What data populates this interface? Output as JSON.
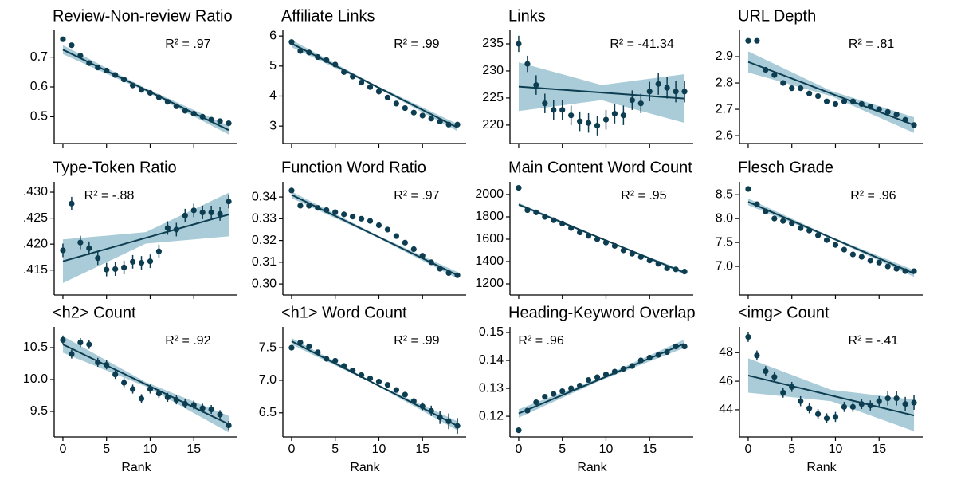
{
  "chart_data": [
    {
      "type": "scatter",
      "title": "Review-Non-review Ratio",
      "annotation": "R² = .97",
      "color": "#0d3d50",
      "band_color": "#a9ccd8",
      "x": [
        0,
        1,
        2,
        3,
        4,
        5,
        6,
        7,
        8,
        9,
        10,
        11,
        12,
        13,
        14,
        15,
        16,
        17,
        18,
        19
      ],
      "values": [
        0.76,
        0.74,
        0.705,
        0.68,
        0.665,
        0.655,
        0.64,
        0.625,
        0.605,
        0.59,
        0.58,
        0.565,
        0.55,
        0.535,
        0.52,
        0.51,
        0.5,
        0.49,
        0.485,
        0.478
      ],
      "errors": [
        0.005,
        0.005,
        0.005,
        0.005,
        0.005,
        0.005,
        0.005,
        0.005,
        0.005,
        0.005,
        0.005,
        0.005,
        0.005,
        0.005,
        0.005,
        0.005,
        0.005,
        0.005,
        0.005,
        0.005
      ],
      "band_x": [
        0,
        9.5,
        19
      ],
      "fit": [
        0.725,
        0.59,
        0.455
      ],
      "band_lower": [
        0.71,
        0.585,
        0.44
      ],
      "band_upper": [
        0.74,
        0.595,
        0.47
      ],
      "xlim": [
        -1,
        20
      ],
      "xticks": [
        0,
        5,
        10,
        15
      ],
      "show_xtick_labels": false,
      "ylim": [
        0.41,
        0.79
      ],
      "yticks": [
        0.5,
        0.6,
        0.7
      ]
    },
    {
      "type": "scatter",
      "title": "Affiliate Links",
      "annotation": "R² = .99",
      "color": "#0d3d50",
      "band_color": "#a9ccd8",
      "x": [
        0,
        1,
        2,
        3,
        4,
        5,
        6,
        7,
        8,
        9,
        10,
        11,
        12,
        13,
        14,
        15,
        16,
        17,
        18,
        19
      ],
      "values": [
        5.8,
        5.5,
        5.45,
        5.3,
        5.2,
        5.05,
        4.8,
        4.65,
        4.45,
        4.3,
        4.15,
        3.95,
        3.75,
        3.6,
        3.45,
        3.35,
        3.25,
        3.15,
        3.05,
        3.05
      ],
      "errors": [
        0.04,
        0.04,
        0.04,
        0.04,
        0.04,
        0.04,
        0.04,
        0.04,
        0.04,
        0.04,
        0.04,
        0.04,
        0.04,
        0.04,
        0.04,
        0.04,
        0.04,
        0.04,
        0.04,
        0.04
      ],
      "band_x": [
        0,
        9.5,
        19
      ],
      "fit": [
        5.75,
        4.35,
        2.95
      ],
      "band_lower": [
        5.63,
        4.32,
        2.83
      ],
      "band_upper": [
        5.87,
        4.38,
        3.07
      ],
      "xlim": [
        -1,
        20
      ],
      "xticks": [
        0,
        5,
        10,
        15
      ],
      "show_xtick_labels": false,
      "ylim": [
        2.42,
        6.19
      ],
      "yticks": [
        3,
        4,
        5,
        6
      ]
    },
    {
      "type": "scatter",
      "title": "Links",
      "annotation": "R² = -41.34",
      "color": "#0d3d50",
      "band_color": "#a9ccd8",
      "x": [
        0,
        1,
        2,
        3,
        4,
        5,
        6,
        7,
        8,
        9,
        10,
        11,
        12,
        13,
        14,
        15,
        16,
        17,
        18,
        19
      ],
      "values": [
        235,
        231.3,
        227.4,
        224,
        222.8,
        222.8,
        221.8,
        220.7,
        220.4,
        219.9,
        221,
        222.1,
        221.8,
        224.6,
        224,
        226.2,
        227.6,
        226.9,
        226.2,
        226.2
      ],
      "errors": [
        1.5,
        1.5,
        1.8,
        1.8,
        1.8,
        1.8,
        1.8,
        1.8,
        1.8,
        1.8,
        1.8,
        1.8,
        1.8,
        1.8,
        1.8,
        1.8,
        2,
        2,
        2,
        2
      ],
      "band_x": [
        0,
        9.5,
        19
      ],
      "fit": [
        227.1,
        226,
        224.9
      ],
      "band_lower": [
        222.6,
        224.6,
        220.4
      ],
      "band_upper": [
        231.6,
        227.4,
        229.4
      ],
      "xlim": [
        -1,
        20
      ],
      "xticks": [
        0,
        5,
        10,
        15
      ],
      "show_xtick_labels": false,
      "ylim": [
        216.6,
        237.5
      ],
      "yticks": [
        220,
        225,
        230,
        235
      ]
    },
    {
      "type": "scatter",
      "title": "URL Depth",
      "annotation": "R² = .81",
      "color": "#0d3d50",
      "band_color": "#a9ccd8",
      "x": [
        0,
        1,
        2,
        3,
        4,
        5,
        6,
        7,
        8,
        9,
        10,
        11,
        12,
        13,
        14,
        15,
        16,
        17,
        18,
        19
      ],
      "values": [
        2.96,
        2.96,
        2.85,
        2.83,
        2.8,
        2.78,
        2.78,
        2.76,
        2.75,
        2.73,
        2.72,
        2.73,
        2.73,
        2.72,
        2.71,
        2.7,
        2.69,
        2.68,
        2.66,
        2.64
      ],
      "errors": [
        0.004,
        0.004,
        0.004,
        0.004,
        0.004,
        0.004,
        0.004,
        0.004,
        0.004,
        0.004,
        0.004,
        0.004,
        0.004,
        0.004,
        0.004,
        0.004,
        0.004,
        0.004,
        0.004,
        0.004
      ],
      "band_x": [
        0,
        9.5,
        19
      ],
      "fit": [
        2.88,
        2.76,
        2.64
      ],
      "band_lower": [
        2.84,
        2.75,
        2.61
      ],
      "band_upper": [
        2.92,
        2.77,
        2.67
      ],
      "xlim": [
        -1,
        20
      ],
      "xticks": [
        0,
        5,
        10,
        15
      ],
      "show_xtick_labels": false,
      "ylim": [
        2.57,
        3.0
      ],
      "yticks": [
        2.6,
        2.7,
        2.8,
        2.9
      ]
    },
    {
      "type": "scatter",
      "title": "Type-Token Ratio",
      "annotation": "R² = -.88",
      "color": "#0d3d50",
      "band_color": "#a9ccd8",
      "x": [
        0,
        1,
        2,
        3,
        4,
        5,
        6,
        7,
        8,
        9,
        10,
        11,
        12,
        13,
        14,
        15,
        16,
        17,
        18,
        19
      ],
      "values": [
        0.4188,
        0.4278,
        0.4203,
        0.4192,
        0.4173,
        0.4151,
        0.4152,
        0.4155,
        0.4166,
        0.4164,
        0.4167,
        0.4186,
        0.4231,
        0.4228,
        0.4255,
        0.4265,
        0.4261,
        0.4261,
        0.4258,
        0.4282
      ],
      "errors": [
        0.0013,
        0.0013,
        0.0013,
        0.0013,
        0.0013,
        0.0013,
        0.0013,
        0.0013,
        0.0013,
        0.0013,
        0.0013,
        0.0013,
        0.0013,
        0.0013,
        0.0013,
        0.0013,
        0.0013,
        0.0013,
        0.0013,
        0.0013
      ],
      "band_x": [
        0,
        9.5,
        19
      ],
      "fit": [
        0.4167,
        0.4212,
        0.4257
      ],
      "band_lower": [
        0.4125,
        0.4201,
        0.4215
      ],
      "band_upper": [
        0.4209,
        0.4223,
        0.4299
      ],
      "xlim": [
        -1,
        20
      ],
      "xticks": [
        0,
        5,
        10,
        15
      ],
      "show_xtick_labels": false,
      "ylim": [
        0.4102,
        0.432
      ],
      "yticks": [
        {
          "value": 0.415,
          "label": ".415"
        },
        {
          "value": 0.42,
          "label": ".420"
        },
        {
          "value": 0.425,
          "label": ".425"
        },
        {
          "value": 0.43,
          "label": ".430"
        }
      ]
    },
    {
      "type": "scatter",
      "title": "Function Word Ratio",
      "annotation": "R² = .97",
      "color": "#0d3d50",
      "band_color": "#a9ccd8",
      "x": [
        0,
        1,
        2,
        3,
        4,
        5,
        6,
        7,
        8,
        9,
        10,
        11,
        12,
        13,
        14,
        15,
        16,
        17,
        18,
        19
      ],
      "values": [
        0.343,
        0.336,
        0.336,
        0.335,
        0.334,
        0.333,
        0.332,
        0.331,
        0.33,
        0.329,
        0.327,
        0.325,
        0.322,
        0.319,
        0.316,
        0.313,
        0.31,
        0.307,
        0.305,
        0.304
      ],
      "errors": [
        0.0004,
        0.0004,
        0.0004,
        0.0004,
        0.0004,
        0.0004,
        0.0004,
        0.0004,
        0.0004,
        0.0004,
        0.0004,
        0.0004,
        0.0004,
        0.0004,
        0.0004,
        0.0004,
        0.0004,
        0.0004,
        0.0004,
        0.0004
      ],
      "band_x": [
        0,
        9.5,
        19
      ],
      "fit": [
        0.341,
        0.3225,
        0.304
      ],
      "band_lower": [
        0.3395,
        0.322,
        0.3025
      ],
      "band_upper": [
        0.3425,
        0.323,
        0.3055
      ],
      "xlim": [
        -1,
        20
      ],
      "xticks": [
        0,
        5,
        10,
        15
      ],
      "show_xtick_labels": false,
      "ylim": [
        0.2949,
        0.347
      ],
      "yticks": [
        {
          "value": 0.3,
          "label": "0.30"
        },
        0.31,
        0.32,
        0.33,
        0.34
      ]
    },
    {
      "type": "scatter",
      "title": "Main Content Word Count",
      "annotation": "R² = .95",
      "color": "#0d3d50",
      "band_color": "#a9ccd8",
      "x": [
        0,
        1,
        2,
        3,
        4,
        5,
        6,
        7,
        8,
        9,
        10,
        11,
        12,
        13,
        14,
        15,
        16,
        17,
        18,
        19
      ],
      "values": [
        2060,
        1860,
        1840,
        1800,
        1770,
        1740,
        1700,
        1660,
        1630,
        1600,
        1570,
        1540,
        1500,
        1470,
        1440,
        1410,
        1380,
        1340,
        1330,
        1310
      ],
      "errors": [
        8,
        8,
        8,
        8,
        8,
        8,
        8,
        8,
        8,
        8,
        8,
        8,
        8,
        8,
        8,
        8,
        8,
        8,
        8,
        8
      ],
      "band_x": [
        0,
        9.5,
        19
      ],
      "fit": [
        1910,
        1605,
        1300
      ],
      "band_lower": [
        1895,
        1600,
        1285
      ],
      "band_upper": [
        1925,
        1610,
        1315
      ],
      "xlim": [
        -1,
        20
      ],
      "xticks": [
        0,
        5,
        10,
        15
      ],
      "show_xtick_labels": false,
      "ylim": [
        1100,
        2114
      ],
      "yticks": [
        1200,
        1400,
        1600,
        1800,
        2000
      ]
    },
    {
      "type": "scatter",
      "title": "Flesch Grade",
      "annotation": "R² = .96",
      "color": "#0d3d50",
      "band_color": "#a9ccd8",
      "x": [
        0,
        1,
        2,
        3,
        4,
        5,
        6,
        7,
        8,
        9,
        10,
        11,
        12,
        13,
        14,
        15,
        16,
        17,
        18,
        19
      ],
      "values": [
        8.62,
        8.3,
        8.15,
        8.0,
        7.95,
        7.9,
        7.8,
        7.75,
        7.65,
        7.55,
        7.45,
        7.35,
        7.25,
        7.2,
        7.12,
        7.08,
        7.0,
        6.95,
        6.9,
        6.9
      ],
      "errors": [
        0.02,
        0.02,
        0.02,
        0.02,
        0.02,
        0.02,
        0.02,
        0.02,
        0.02,
        0.02,
        0.02,
        0.02,
        0.02,
        0.02,
        0.02,
        0.02,
        0.02,
        0.02,
        0.02,
        0.02
      ],
      "band_x": [
        0,
        9.5,
        19
      ],
      "fit": [
        8.35,
        7.6,
        6.85
      ],
      "band_lower": [
        8.28,
        7.58,
        6.78
      ],
      "band_upper": [
        8.42,
        7.62,
        6.92
      ],
      "xlim": [
        -1,
        20
      ],
      "xticks": [
        0,
        5,
        10,
        15
      ],
      "show_xtick_labels": false,
      "ylim": [
        6.4,
        8.77
      ],
      "yticks": [
        {
          "value": 7,
          "label": "7.0"
        },
        7.5,
        {
          "value": 8,
          "label": "8.0"
        },
        8.5
      ]
    },
    {
      "type": "scatter",
      "title": "<h2> Count",
      "annotation": "R² = .92",
      "color": "#0d3d50",
      "band_color": "#a9ccd8",
      "x": [
        0,
        1,
        2,
        3,
        4,
        5,
        6,
        7,
        8,
        9,
        10,
        11,
        12,
        13,
        14,
        15,
        16,
        17,
        18,
        19
      ],
      "values": [
        10.62,
        10.4,
        10.58,
        10.55,
        10.27,
        10.23,
        10.08,
        9.95,
        9.85,
        9.7,
        9.85,
        9.78,
        9.72,
        9.68,
        9.62,
        9.6,
        9.55,
        9.53,
        9.45,
        9.28
      ],
      "errors": [
        0.07,
        0.07,
        0.07,
        0.07,
        0.07,
        0.07,
        0.07,
        0.07,
        0.07,
        0.07,
        0.07,
        0.07,
        0.07,
        0.07,
        0.07,
        0.07,
        0.07,
        0.07,
        0.07,
        0.07
      ],
      "band_x": [
        0,
        9.5,
        19
      ],
      "fit": [
        10.55,
        9.925,
        9.3
      ],
      "band_lower": [
        10.42,
        9.89,
        9.17
      ],
      "band_upper": [
        10.68,
        9.96,
        9.43
      ],
      "xlim": [
        -1,
        20
      ],
      "xticks": [
        0,
        5,
        10,
        15
      ],
      "show_xtick_labels": true,
      "xlabel": "Rank",
      "ylim": [
        9.1,
        10.825
      ],
      "yticks": [
        9.5,
        {
          "value": 10,
          "label": "10.0"
        },
        10.5
      ]
    },
    {
      "type": "scatter",
      "title": "<h1> Word Count",
      "annotation": "R² = .99",
      "color": "#0d3d50",
      "band_color": "#a9ccd8",
      "x": [
        0,
        1,
        2,
        3,
        4,
        5,
        6,
        7,
        8,
        9,
        10,
        11,
        12,
        13,
        14,
        15,
        16,
        17,
        18,
        19
      ],
      "values": [
        7.5,
        7.58,
        7.52,
        7.43,
        7.33,
        7.3,
        7.22,
        7.15,
        7.08,
        7.03,
        6.98,
        6.93,
        6.85,
        6.78,
        6.68,
        6.6,
        6.53,
        6.43,
        6.37,
        6.3
      ],
      "errors": [
        0.04,
        0.04,
        0.04,
        0.04,
        0.04,
        0.04,
        0.04,
        0.04,
        0.04,
        0.04,
        0.04,
        0.04,
        0.04,
        0.04,
        0.04,
        0.06,
        0.08,
        0.1,
        0.12,
        0.12
      ],
      "band_x": [
        0,
        9.5,
        19
      ],
      "fit": [
        7.6,
        6.95,
        6.3
      ],
      "band_lower": [
        7.55,
        6.94,
        6.23
      ],
      "band_upper": [
        7.65,
        6.96,
        6.37
      ],
      "xlim": [
        -1,
        20
      ],
      "xticks": [
        0,
        5,
        10,
        15
      ],
      "show_xtick_labels": true,
      "xlabel": "Rank",
      "ylim": [
        6.13,
        7.82
      ],
      "yticks": [
        6.5,
        {
          "value": 7,
          "label": "7.0"
        },
        7.5
      ]
    },
    {
      "type": "scatter",
      "title": "Heading-Keyword Overlap",
      "annotation": "R² = .96",
      "color": "#0d3d50",
      "band_color": "#a9ccd8",
      "x": [
        0,
        1,
        2,
        3,
        4,
        5,
        6,
        7,
        8,
        9,
        10,
        11,
        12,
        13,
        14,
        15,
        16,
        17,
        18,
        19
      ],
      "values": [
        0.115,
        0.122,
        0.125,
        0.127,
        0.128,
        0.129,
        0.13,
        0.131,
        0.133,
        0.134,
        0.135,
        0.136,
        0.137,
        0.138,
        0.14,
        0.141,
        0.142,
        0.143,
        0.145,
        0.145
      ],
      "errors": [
        0.0005,
        0.0005,
        0.0005,
        0.0005,
        0.0005,
        0.0005,
        0.0005,
        0.0005,
        0.0005,
        0.0005,
        0.0005,
        0.0005,
        0.0005,
        0.0005,
        0.0005,
        0.0005,
        0.0005,
        0.0005,
        0.0005,
        0.0005
      ],
      "band_x": [
        0,
        9.5,
        19
      ],
      "fit": [
        0.121,
        0.1335,
        0.146
      ],
      "band_lower": [
        0.1195,
        0.133,
        0.1445
      ],
      "band_upper": [
        0.1225,
        0.134,
        0.1475
      ],
      "xlim": [
        -1,
        20
      ],
      "xticks": [
        0,
        5,
        10,
        15
      ],
      "show_xtick_labels": true,
      "xlabel": "Rank",
      "ylim": [
        0.1126,
        0.152
      ],
      "yticks": [
        0.12,
        0.13,
        0.14,
        0.15
      ]
    },
    {
      "type": "scatter",
      "title": "<img> Count",
      "annotation": "R² = -.41",
      "color": "#0d3d50",
      "band_color": "#a9ccd8",
      "x": [
        0,
        1,
        2,
        3,
        4,
        5,
        6,
        7,
        8,
        9,
        10,
        11,
        12,
        13,
        14,
        15,
        16,
        17,
        18,
        19
      ],
      "values": [
        49.1,
        47.8,
        46.7,
        46.3,
        45.2,
        45.6,
        44.6,
        44.1,
        43.7,
        43.4,
        43.5,
        44.2,
        44.2,
        44.4,
        44.3,
        44.6,
        44.8,
        44.8,
        44.4,
        44.5
      ],
      "errors": [
        0.35,
        0.35,
        0.35,
        0.35,
        0.35,
        0.35,
        0.35,
        0.35,
        0.35,
        0.35,
        0.35,
        0.35,
        0.35,
        0.35,
        0.35,
        0.35,
        0.5,
        0.5,
        0.5,
        0.5
      ],
      "band_x": [
        0,
        9.5,
        19
      ],
      "fit": [
        46.4,
        45,
        43.6
      ],
      "band_lower": [
        45.2,
        44.6,
        42.5
      ],
      "band_upper": [
        47.6,
        45.4,
        44.7
      ],
      "xlim": [
        -1,
        20
      ],
      "xticks": [
        0,
        5,
        10,
        15
      ],
      "show_xtick_labels": true,
      "xlabel": "Rank",
      "ylim": [
        42.1,
        49.8
      ],
      "yticks": [
        44,
        46,
        48
      ]
    }
  ]
}
